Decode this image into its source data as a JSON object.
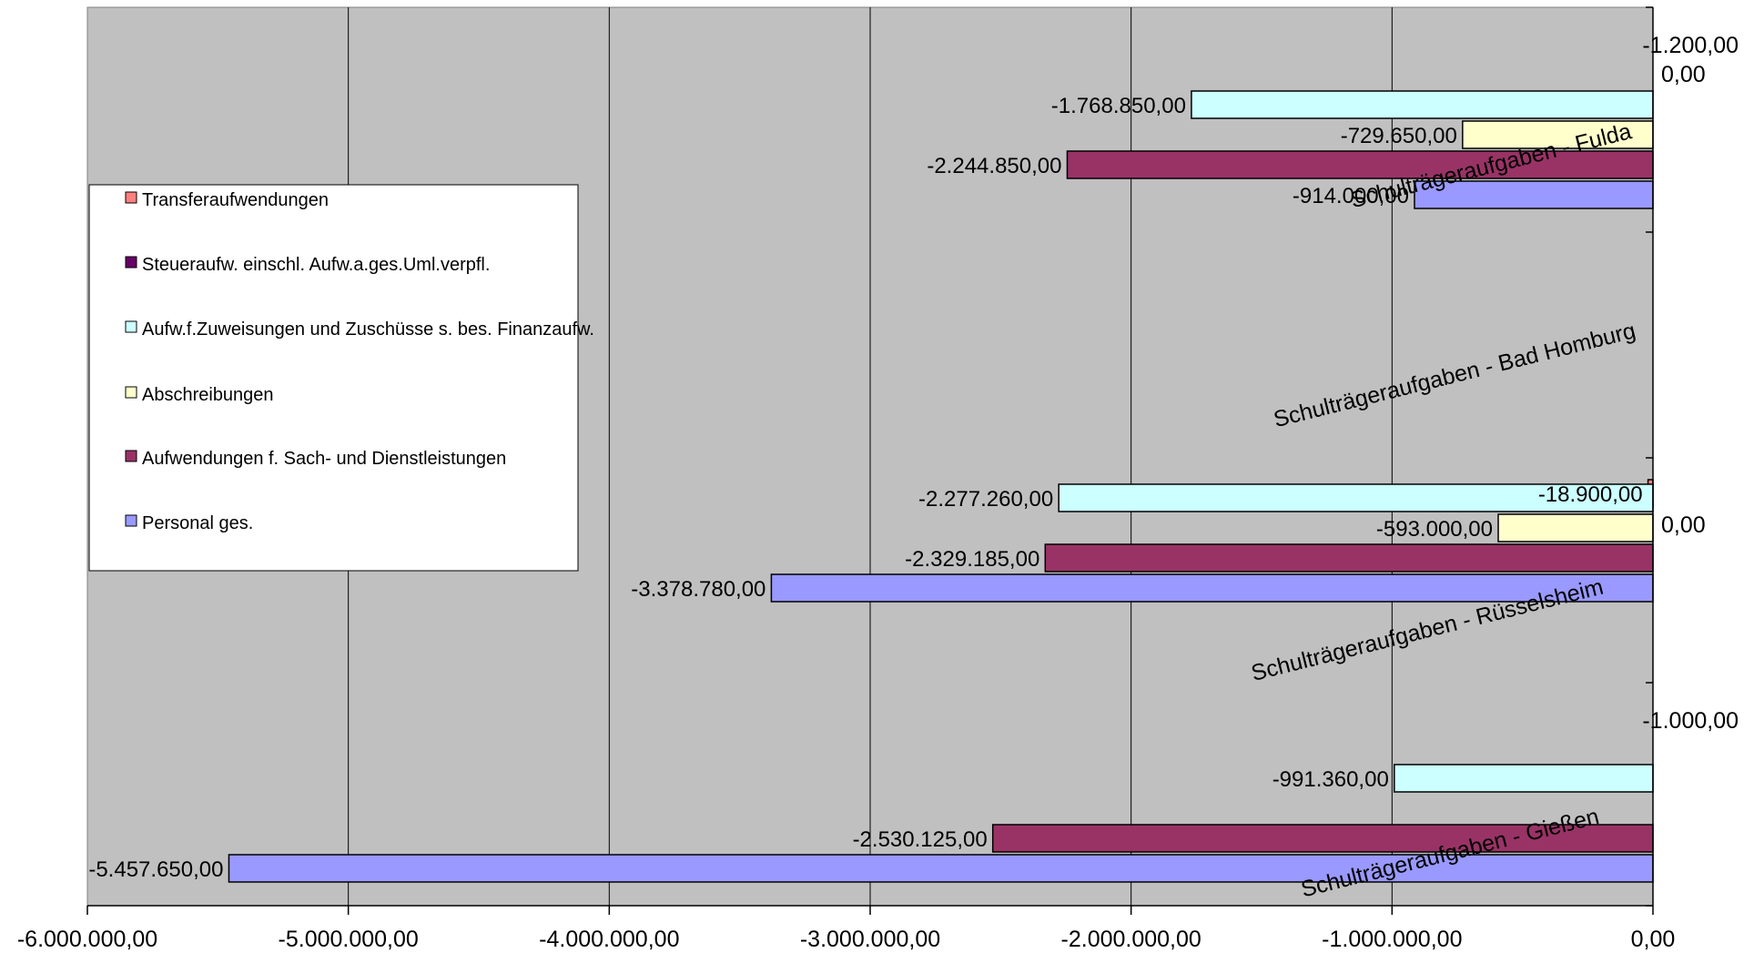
{
  "chart_data": {
    "type": "bar",
    "orientation": "horizontal",
    "x_ticks": [
      "-6.000.000,00",
      "-5.000.000,00",
      "-4.000.000,00",
      "-3.000.000,00",
      "-2.000.000,00",
      "-1.000.000,00",
      "0,00"
    ],
    "xlim": [
      -6000000,
      0
    ],
    "grid": true,
    "plot_background": "#c0c0c0",
    "legend_position": "left",
    "categories": [
      {
        "label": "Schulträgeraufgaben - Fulda",
        "values": {
          "Transferaufwendungen": null,
          "Steuer": null,
          "Zuweisungen": -1768850,
          "Abschreibungen": -729650,
          "Sach": -2244850,
          "Personal": -914000
        }
      },
      {
        "label": "Schulträgeraufgaben - Bad Homburg",
        "values": {
          "Transferaufwendungen": null,
          "Steuer": null,
          "Zuweisungen": null,
          "Abschreibungen": null,
          "Sach": null,
          "Personal": null
        }
      },
      {
        "label": "Schulträgeraufgaben - Rüsselsheim",
        "values": {
          "Transferaufwendungen": -18900,
          "Steuer": null,
          "Zuweisungen": -2277260,
          "Abschreibungen": -593000,
          "Sach": -2329185,
          "Personal": -3378780
        }
      },
      {
        "label": "Schulträgeraufgaben - Gießen",
        "values": {
          "Transferaufwendungen": null,
          "Steuer": null,
          "Zuweisungen": -991360,
          "Abschreibungen": null,
          "Sach": -2530125,
          "Personal": -5457650
        }
      }
    ],
    "series": [
      {
        "key": "Transferaufwendungen",
        "name": "Transferaufwendungen",
        "color": "#ff8080"
      },
      {
        "key": "Steuer",
        "name": "Steueraufw. einschl. Aufw.a.ges.Uml.verpfl.",
        "color": "#660066"
      },
      {
        "key": "Zuweisungen",
        "name": "Aufw.f.Zuweisungen und Zuschüsse s. bes. Finanzaufw.",
        "color": "#ccffff"
      },
      {
        "key": "Abschreibungen",
        "name": "Abschreibungen",
        "color": "#ffffcc"
      },
      {
        "key": "Sach",
        "name": "Aufwendungen f. Sach- und Dienstleistungen",
        "color": "#993366"
      },
      {
        "key": "Personal",
        "name": "Personal ges.",
        "color": "#9999ff"
      }
    ],
    "data_labels": [
      {
        "category": 0,
        "series": "Zuweisungen",
        "text": "-1.768.850,00"
      },
      {
        "category": 0,
        "series": "Abschreibungen",
        "text": "-729.650,00"
      },
      {
        "category": 0,
        "series": "Sach",
        "text": "-2.244.850,00"
      },
      {
        "category": 0,
        "series": "Personal",
        "text": "-914.000,00"
      },
      {
        "category": 2,
        "series": "Transferaufwendungen",
        "text": "-18.900,00"
      },
      {
        "category": 2,
        "series": "Zuweisungen",
        "text": "-2.277.260,00"
      },
      {
        "category": 2,
        "series": "Abschreibungen",
        "text": "-593.000,00"
      },
      {
        "category": 2,
        "series": "Sach",
        "text": "-2.329.185,00"
      },
      {
        "category": 2,
        "series": "Personal",
        "text": "-3.378.780,00"
      },
      {
        "category": 3,
        "series": "Zuweisungen",
        "text": "-991.360,00"
      },
      {
        "category": 3,
        "series": "Sach",
        "text": "-2.530.125,00"
      },
      {
        "category": 3,
        "series": "Personal",
        "text": "-5.457.650,00"
      }
    ],
    "right_side_annotations": [
      "-1.200,00",
      "0,00",
      "0,00",
      "-1.000,00"
    ]
  }
}
